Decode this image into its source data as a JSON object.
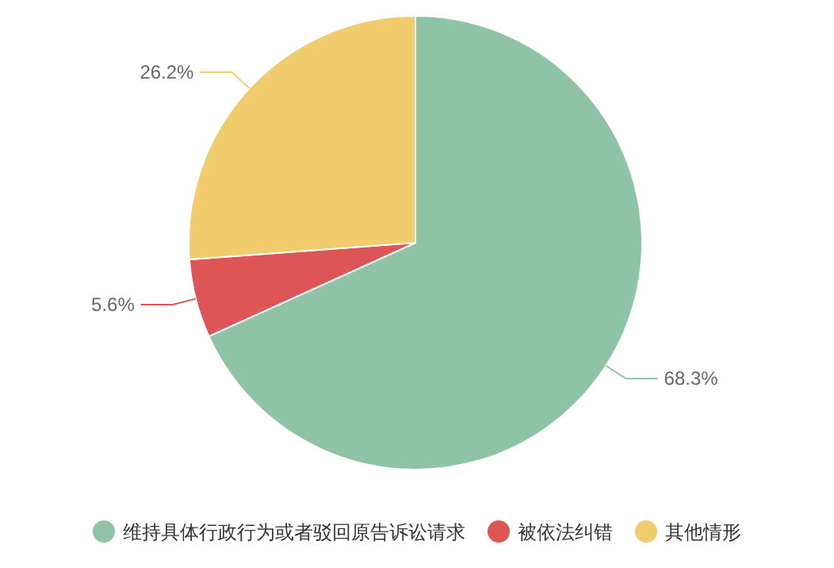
{
  "chart_data": {
    "type": "pie",
    "categories": [
      "维持具体行政行为或者驳回原告诉讼请求",
      "被依法纠错",
      "其他情形"
    ],
    "values": [
      68.3,
      5.6,
      26.2
    ],
    "colors": [
      "#8fc3a8",
      "#dd5555",
      "#f0cc6c"
    ],
    "value_labels": [
      "68.3%",
      "5.6%",
      "26.2%"
    ],
    "legend": "bottom"
  }
}
